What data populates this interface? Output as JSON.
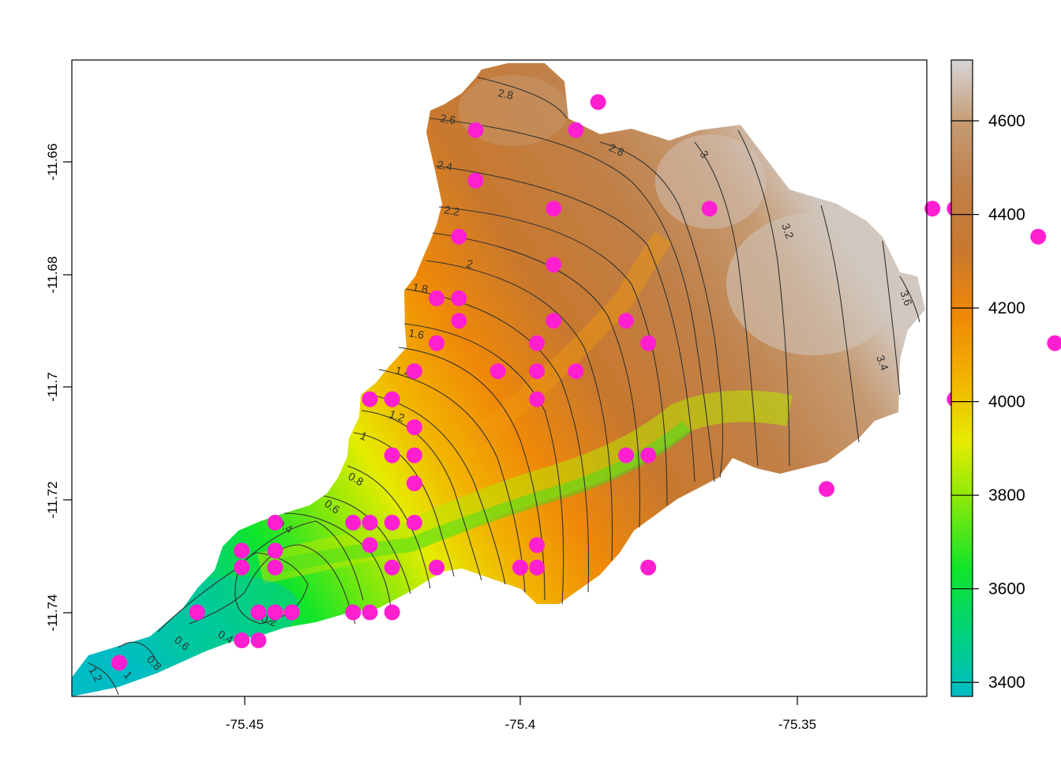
{
  "map": {
    "x_axis": {
      "ticks": [
        "-75.45",
        "-75.4",
        "-75.35"
      ]
    },
    "y_axis": {
      "ticks": [
        "-11.66",
        "-11.68",
        "-11.7",
        "-11.72",
        "-11.74"
      ]
    },
    "extent": {
      "lon": [
        -75.481,
        -75.3275
      ],
      "lat": [
        -11.7565,
        -11.643
      ]
    }
  },
  "legend": {
    "ticks": [
      "3400",
      "3600",
      "3800",
      "4000",
      "4200",
      "4400",
      "4600"
    ],
    "range": [
      3370,
      4730
    ],
    "palette": [
      "#00bcc4",
      "#00d27c",
      "#10e52a",
      "#7fe80c",
      "#e5ec00",
      "#f2b200",
      "#ef8808",
      "#c8782e",
      "#c59a72",
      "#d0c4ba",
      "#d6d6d6"
    ]
  },
  "contour_labels": [
    "0.2",
    "0.4",
    "0.6",
    "0.8",
    "1",
    "1.2",
    "1.4",
    "1.6",
    "1.8",
    "2",
    "2.2",
    "2.4",
    "2.6",
    "2.8",
    "3",
    "3.2",
    "3.4",
    "3.6"
  ],
  "colors": {
    "points": "#ff1fd0",
    "contours": "#333333",
    "frame": "#000000"
  },
  "points": [
    [
      -75.4725,
      -11.7505
    ],
    [
      -75.4585,
      -11.7415
    ],
    [
      -75.4505,
      -11.7305
    ],
    [
      -75.4505,
      -11.7335
    ],
    [
      -75.4505,
      -11.7465
    ],
    [
      -75.4475,
      -11.7415
    ],
    [
      -75.4475,
      -11.7465
    ],
    [
      -75.4445,
      -11.7255
    ],
    [
      -75.4445,
      -11.7305
    ],
    [
      -75.4445,
      -11.7335
    ],
    [
      -75.4445,
      -11.7415
    ],
    [
      -75.4415,
      -11.7415
    ],
    [
      -75.4305,
      -11.7255
    ],
    [
      -75.4305,
      -11.7415
    ],
    [
      -75.4275,
      -11.7035
    ],
    [
      -75.4275,
      -11.7255
    ],
    [
      -75.4275,
      -11.7295
    ],
    [
      -75.4275,
      -11.7415
    ],
    [
      -75.4235,
      -11.7035
    ],
    [
      -75.4235,
      -11.7135
    ],
    [
      -75.4235,
      -11.7255
    ],
    [
      -75.4235,
      -11.7335
    ],
    [
      -75.4235,
      -11.7415
    ],
    [
      -75.4195,
      -11.6985
    ],
    [
      -75.4195,
      -11.7085
    ],
    [
      -75.4195,
      -11.7135
    ],
    [
      -75.4195,
      -11.7185
    ],
    [
      -75.4195,
      -11.7255
    ],
    [
      -75.4155,
      -11.6855
    ],
    [
      -75.4155,
      -11.6935
    ],
    [
      -75.4155,
      -11.7335
    ],
    [
      -75.4115,
      -11.6745
    ],
    [
      -75.4115,
      -11.6855
    ],
    [
      -75.4115,
      -11.6895
    ],
    [
      -75.4085,
      -11.6555
    ],
    [
      -75.4085,
      -11.6645
    ],
    [
      -75.4045,
      -11.6985
    ],
    [
      -75.4005,
      -11.7335
    ],
    [
      -75.3975,
      -11.6935
    ],
    [
      -75.3975,
      -11.6985
    ],
    [
      -75.3975,
      -11.7035
    ],
    [
      -75.3975,
      -11.7295
    ],
    [
      -75.3975,
      -11.7335
    ],
    [
      -75.3945,
      -11.6695
    ],
    [
      -75.3945,
      -11.6795
    ],
    [
      -75.3945,
      -11.6895
    ],
    [
      -75.3905,
      -11.6555
    ],
    [
      -75.3905,
      -11.6985
    ],
    [
      -75.3865,
      -11.6505
    ],
    [
      -75.3815,
      -11.6895
    ],
    [
      -75.3815,
      -11.7135
    ],
    [
      -75.3775,
      -11.6935
    ],
    [
      -75.3775,
      -11.7135
    ],
    [
      -75.3775,
      -11.7335
    ],
    [
      -75.3665,
      -11.6695
    ],
    [
      -75.3455,
      -11.7195
    ],
    [
      -75.3265,
      -11.6695
    ],
    [
      -75.3225,
      -11.6695
    ],
    [
      -75.3225,
      -11.7035
    ],
    [
      -75.3075,
      -11.6745
    ],
    [
      -75.3045,
      -11.6935
    ]
  ],
  "notes_elevation_unit": ""
}
